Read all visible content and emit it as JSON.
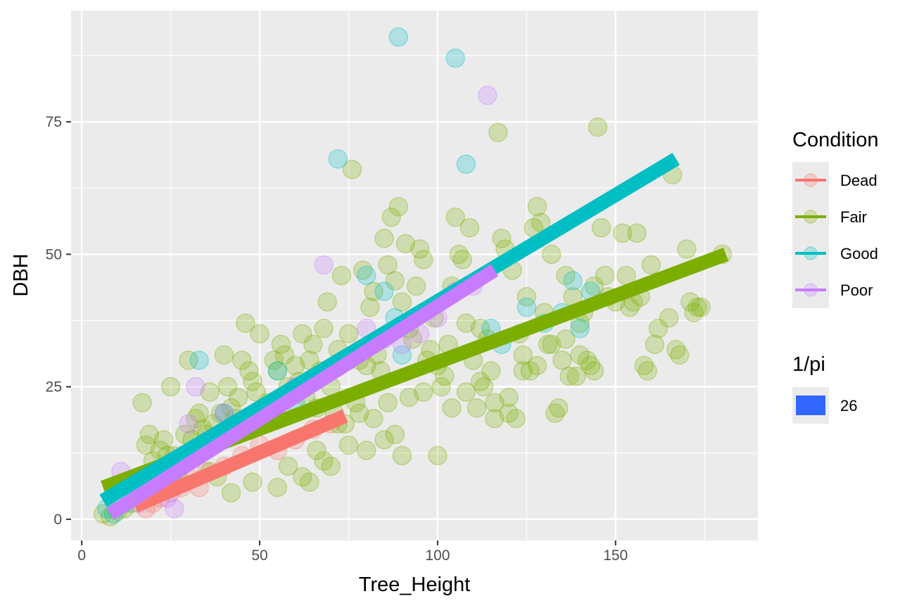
{
  "chart_data": {
    "type": "scatter",
    "xlabel": "Tree_Height",
    "ylabel": "DBH",
    "xlim": [
      -3,
      190
    ],
    "ylim": [
      -4,
      96
    ],
    "grid": true,
    "x_major_ticks": [
      0,
      50,
      100,
      150
    ],
    "x_minor_ticks": [
      25,
      75,
      125,
      175
    ],
    "y_major_ticks": [
      0,
      25,
      50,
      75
    ],
    "y_minor_ticks": [
      12.5,
      37.5,
      62.5,
      87.5
    ],
    "x_tick_labels": [
      "0",
      "50",
      "100",
      "150"
    ],
    "y_tick_labels": [
      "0",
      "25",
      "50",
      "75"
    ],
    "legend_position": "right",
    "legend_color": {
      "title": "Condition",
      "entries": [
        {
          "label": "Dead",
          "color": "#F8766D"
        },
        {
          "label": "Fair",
          "color": "#7CAE00"
        },
        {
          "label": "Good",
          "color": "#00BFC4"
        },
        {
          "label": "Poor",
          "color": "#C77CFF"
        }
      ]
    },
    "legend_size": {
      "title": "1/pi",
      "entries": [
        {
          "label": "26",
          "color": "#3366FF"
        }
      ]
    },
    "series": [
      {
        "name": "Dead",
        "color": "#F8766D",
        "points": [
          [
            18,
            2
          ],
          [
            22,
            4
          ],
          [
            25,
            5
          ],
          [
            28,
            6
          ],
          [
            20,
            3
          ],
          [
            30,
            8
          ],
          [
            35,
            9
          ],
          [
            40,
            10
          ],
          [
            45,
            12
          ],
          [
            50,
            14
          ],
          [
            55,
            13
          ],
          [
            60,
            15
          ],
          [
            65,
            17
          ],
          [
            70,
            18
          ],
          [
            26,
            7
          ],
          [
            33,
            6
          ]
        ],
        "trend": [
          [
            15,
            2.5
          ],
          [
            74,
            19.5
          ]
        ]
      },
      {
        "name": "Fair",
        "color": "#7CAE00",
        "points": [
          [
            6,
            1
          ],
          [
            8,
            0.5
          ],
          [
            10,
            1.5
          ],
          [
            12,
            2
          ],
          [
            14,
            3
          ],
          [
            15,
            4
          ],
          [
            16,
            6
          ],
          [
            17,
            22
          ],
          [
            18,
            14
          ],
          [
            19,
            16
          ],
          [
            20,
            11
          ],
          [
            21,
            9
          ],
          [
            22,
            13
          ],
          [
            23,
            15
          ],
          [
            24,
            12
          ],
          [
            25,
            25
          ],
          [
            26,
            12
          ],
          [
            27,
            9
          ],
          [
            28,
            10
          ],
          [
            29,
            16
          ],
          [
            30,
            30
          ],
          [
            31,
            15
          ],
          [
            32,
            19
          ],
          [
            33,
            20
          ],
          [
            34,
            17
          ],
          [
            35,
            16
          ],
          [
            36,
            24
          ],
          [
            37,
            18
          ],
          [
            38,
            15
          ],
          [
            39,
            20
          ],
          [
            40,
            31
          ],
          [
            41,
            25
          ],
          [
            42,
            21
          ],
          [
            43,
            19
          ],
          [
            44,
            23
          ],
          [
            45,
            30
          ],
          [
            46,
            37
          ],
          [
            47,
            28
          ],
          [
            48,
            26
          ],
          [
            49,
            24
          ],
          [
            50,
            35
          ],
          [
            51,
            18
          ],
          [
            52,
            22
          ],
          [
            53,
            20
          ],
          [
            54,
            30
          ],
          [
            55,
            28
          ],
          [
            56,
            33
          ],
          [
            57,
            31
          ],
          [
            58,
            25
          ],
          [
            59,
            24
          ],
          [
            60,
            29
          ],
          [
            61,
            26
          ],
          [
            62,
            35
          ],
          [
            63,
            23
          ],
          [
            64,
            30
          ],
          [
            65,
            33
          ],
          [
            66,
            21
          ],
          [
            67,
            28
          ],
          [
            68,
            36
          ],
          [
            69,
            41
          ],
          [
            70,
            25
          ],
          [
            71,
            20
          ],
          [
            72,
            32
          ],
          [
            73,
            46
          ],
          [
            74,
            18
          ],
          [
            75,
            35
          ],
          [
            76,
            66
          ],
          [
            77,
            22
          ],
          [
            78,
            30
          ],
          [
            79,
            47
          ],
          [
            80,
            29
          ],
          [
            81,
            40
          ],
          [
            82,
            43
          ],
          [
            83,
            31
          ],
          [
            84,
            28
          ],
          [
            85,
            53
          ],
          [
            86,
            48
          ],
          [
            87,
            57
          ],
          [
            88,
            45
          ],
          [
            89,
            59
          ],
          [
            90,
            41
          ],
          [
            91,
            52
          ],
          [
            92,
            36
          ],
          [
            93,
            34
          ],
          [
            94,
            44
          ],
          [
            95,
            51
          ],
          [
            96,
            49
          ],
          [
            97,
            30
          ],
          [
            98,
            32
          ],
          [
            99,
            38
          ],
          [
            100,
            29
          ],
          [
            101,
            25
          ],
          [
            102,
            27
          ],
          [
            103,
            33
          ],
          [
            104,
            44
          ],
          [
            105,
            57
          ],
          [
            106,
            50
          ],
          [
            107,
            49
          ],
          [
            108,
            37
          ],
          [
            109,
            55
          ],
          [
            110,
            30
          ],
          [
            111,
            21
          ],
          [
            112,
            36
          ],
          [
            113,
            25
          ],
          [
            114,
            34
          ],
          [
            115,
            28
          ],
          [
            116,
            22
          ],
          [
            117,
            73
          ],
          [
            118,
            53
          ],
          [
            119,
            51
          ],
          [
            120,
            20
          ],
          [
            121,
            47
          ],
          [
            122,
            19
          ],
          [
            123,
            35
          ],
          [
            124,
            31
          ],
          [
            125,
            42
          ],
          [
            126,
            28
          ],
          [
            127,
            55
          ],
          [
            128,
            59
          ],
          [
            129,
            56
          ],
          [
            130,
            39
          ],
          [
            131,
            33
          ],
          [
            132,
            50
          ],
          [
            133,
            20
          ],
          [
            134,
            21
          ],
          [
            135,
            30
          ],
          [
            136,
            46
          ],
          [
            137,
            27
          ],
          [
            138,
            42
          ],
          [
            139,
            27
          ],
          [
            140,
            37
          ],
          [
            141,
            39
          ],
          [
            142,
            30
          ],
          [
            143,
            29
          ],
          [
            144,
            44
          ],
          [
            145,
            74
          ],
          [
            146,
            55
          ],
          [
            147,
            46
          ],
          [
            148,
            42
          ],
          [
            150,
            41
          ],
          [
            152,
            54
          ],
          [
            153,
            46
          ],
          [
            154,
            40
          ],
          [
            155,
            41
          ],
          [
            156,
            54
          ],
          [
            157,
            42
          ],
          [
            158,
            29
          ],
          [
            159,
            28
          ],
          [
            160,
            48
          ],
          [
            161,
            33
          ],
          [
            162,
            36
          ],
          [
            165,
            38
          ],
          [
            166,
            65
          ],
          [
            167,
            32
          ],
          [
            168,
            31
          ],
          [
            170,
            51
          ],
          [
            171,
            41
          ],
          [
            172,
            39
          ],
          [
            173,
            40
          ],
          [
            174,
            40
          ],
          [
            180,
            50
          ],
          [
            68,
            11
          ],
          [
            70,
            10
          ],
          [
            75,
            14
          ],
          [
            80,
            13
          ],
          [
            85,
            15
          ],
          [
            88,
            16
          ],
          [
            90,
            12
          ],
          [
            62,
            8
          ],
          [
            64,
            7
          ],
          [
            55,
            6
          ],
          [
            48,
            7
          ],
          [
            42,
            5
          ],
          [
            38,
            8
          ],
          [
            36,
            9
          ],
          [
            58,
            10
          ],
          [
            66,
            13
          ],
          [
            72,
            18
          ],
          [
            78,
            20
          ],
          [
            82,
            19
          ],
          [
            86,
            22
          ],
          [
            92,
            23
          ],
          [
            96,
            24
          ],
          [
            100,
            12
          ],
          [
            104,
            21
          ],
          [
            108,
            24
          ],
          [
            112,
            26
          ],
          [
            116,
            19
          ],
          [
            120,
            23
          ],
          [
            124,
            28
          ],
          [
            128,
            29
          ],
          [
            132,
            33
          ],
          [
            136,
            34
          ],
          [
            140,
            31
          ],
          [
            144,
            28
          ]
        ],
        "trend": [
          [
            6,
            6
          ],
          [
            181,
            50
          ]
        ]
      },
      {
        "name": "Good",
        "color": "#00BFC4",
        "points": [
          [
            7,
            2
          ],
          [
            9,
            1
          ],
          [
            12,
            3
          ],
          [
            20,
            6
          ],
          [
            25,
            8
          ],
          [
            33,
            30
          ],
          [
            40,
            20
          ],
          [
            55,
            28
          ],
          [
            60,
            22
          ],
          [
            72,
            68
          ],
          [
            80,
            46
          ],
          [
            85,
            43
          ],
          [
            88,
            38
          ],
          [
            89,
            91
          ],
          [
            90,
            31
          ],
          [
            105,
            87
          ],
          [
            108,
            67
          ],
          [
            115,
            36
          ],
          [
            118,
            33
          ],
          [
            125,
            40
          ],
          [
            130,
            37
          ],
          [
            135,
            39
          ],
          [
            138,
            45
          ],
          [
            140,
            36
          ],
          [
            143,
            43
          ]
        ],
        "trend": [
          [
            6,
            3.5
          ],
          [
            167,
            68
          ]
        ]
      },
      {
        "name": "Poor",
        "color": "#C77CFF",
        "points": [
          [
            11,
            9
          ],
          [
            14,
            7
          ],
          [
            16,
            3
          ],
          [
            20,
            5
          ],
          [
            22,
            6
          ],
          [
            24,
            4
          ],
          [
            26,
            2
          ],
          [
            30,
            18
          ],
          [
            32,
            25
          ],
          [
            40,
            20
          ],
          [
            50,
            18
          ],
          [
            60,
            25
          ],
          [
            68,
            48
          ],
          [
            75,
            30
          ],
          [
            80,
            36
          ],
          [
            85,
            34
          ],
          [
            90,
            33
          ],
          [
            95,
            35
          ],
          [
            100,
            38
          ],
          [
            105,
            43
          ],
          [
            110,
            44
          ],
          [
            114,
            80
          ]
        ],
        "trend": [
          [
            8,
            1
          ],
          [
            116,
            47
          ]
        ]
      }
    ]
  }
}
